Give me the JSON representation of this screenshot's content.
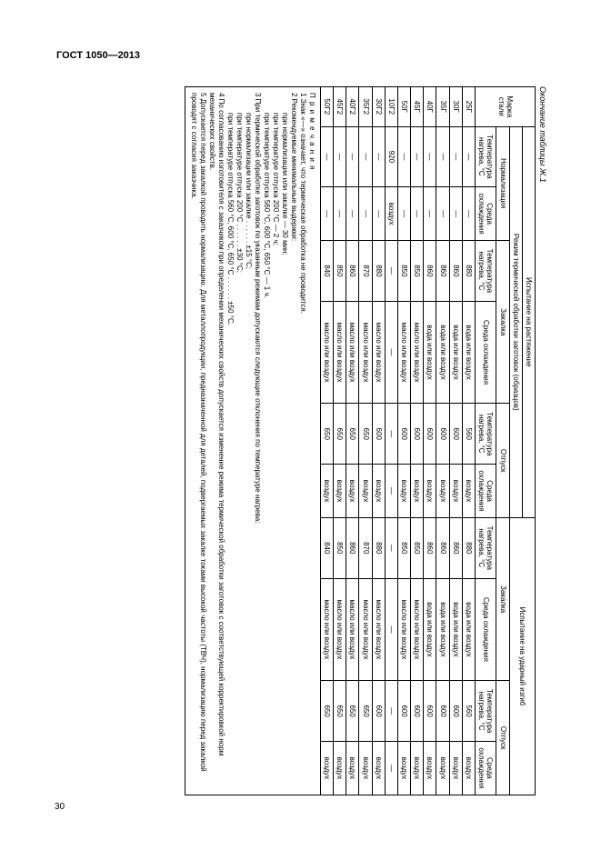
{
  "page_number": "30",
  "doc_title": "ГОСТ 1050—2013",
  "table_caption": "Окончание таблицы Ж.1",
  "headers": {
    "mark": "Марка\nстали",
    "top_tension": "Испытание на растяжение",
    "top_mode": "Режим термической обработки заготовок (образцов)",
    "top_impact": "Испытание на ударный изгиб",
    "norm": "Нормализация",
    "zak": "Закалка",
    "otp": "Отпуск",
    "tnag": "Температура\nнагрева, °С",
    "envcool": "Среда\nохлаждения",
    "envcool_wide": "Среда охлаждения"
  },
  "rows": [
    {
      "m": "25Г",
      "n1": "—",
      "n2": "—",
      "zt": "880",
      "ze": "вода или воздух",
      "ot": "560",
      "oe": "воздух",
      "it": "880",
      "ie": "вода или воздух",
      "jt": "560",
      "je": "воздух"
    },
    {
      "m": "30Г",
      "n1": "—",
      "n2": "—",
      "zt": "860",
      "ze": "вода или воздух",
      "ot": "600",
      "oe": "воздух",
      "it": "860",
      "ie": "вода или воздух",
      "jt": "600",
      "je": "воздух"
    },
    {
      "m": "35Г",
      "n1": "—",
      "n2": "—",
      "zt": "860",
      "ze": "вода или воздух",
      "ot": "600",
      "oe": "воздух",
      "it": "860",
      "ie": "вода или воздух",
      "jt": "600",
      "je": "воздух"
    },
    {
      "m": "40Г",
      "n1": "—",
      "n2": "—",
      "zt": "860",
      "ze": "вода или воздух",
      "ot": "600",
      "oe": "воздух",
      "it": "860",
      "ie": "вода или воздух",
      "jt": "600",
      "je": "воздух"
    },
    {
      "m": "45Г",
      "n1": "—",
      "n2": "—",
      "zt": "850",
      "ze": "масло или воздух",
      "ot": "600",
      "oe": "воздух",
      "it": "850",
      "ie": "масло или воздух",
      "jt": "600",
      "je": "воздух"
    },
    {
      "m": "50Г",
      "n1": "—",
      "n2": "—",
      "zt": "850",
      "ze": "масло или воздух",
      "ot": "600",
      "oe": "воздух",
      "it": "850",
      "ie": "масло или воздух",
      "jt": "600",
      "je": "воздух"
    },
    {
      "m": "10Г2",
      "n1": "920",
      "n2": "воздух",
      "zt": "—",
      "ze": "—",
      "ot": "—",
      "oe": "—",
      "it": "—",
      "ie": "—",
      "jt": "—",
      "je": "—"
    },
    {
      "m": "30Г2",
      "n1": "—",
      "n2": "—",
      "zt": "880",
      "ze": "масло или воздух",
      "ot": "600",
      "oe": "воздух",
      "it": "880",
      "ie": "масло или воздух",
      "jt": "600",
      "je": "воздух"
    },
    {
      "m": "35Г2",
      "n1": "—",
      "n2": "—",
      "zt": "870",
      "ze": "масло или воздух",
      "ot": "650",
      "oe": "воздух",
      "it": "870",
      "ie": "масло или воздух",
      "jt": "650",
      "je": "воздух"
    },
    {
      "m": "40Г2",
      "n1": "—",
      "n2": "—",
      "zt": "860",
      "ze": "масло или воздух",
      "ot": "650",
      "oe": "воздух",
      "it": "860",
      "ie": "масло или воздух",
      "jt": "650",
      "je": "воздух"
    },
    {
      "m": "45Г2",
      "n1": "—",
      "n2": "—",
      "zt": "850",
      "ze": "масло или воздух",
      "ot": "650",
      "oe": "воздух",
      "it": "850",
      "ie": "масло или воздух",
      "jt": "650",
      "je": "воздух"
    },
    {
      "m": "50Г2",
      "n1": "—",
      "n2": "—",
      "zt": "840",
      "ze": "масло или воздух",
      "ot": "650",
      "oe": "воздух",
      "it": "840",
      "ie": "масло или воздух",
      "jt": "650",
      "je": "воздух"
    }
  ],
  "notes": {
    "head": "П р и м е ч а н и я",
    "n1": "1  Знак «—» означает, что термическая обработка не проводится.",
    "n2": "2  Рекомендуемые минимальные выдержки:",
    "n2a": "при нормализации или закалке — 30 мин;",
    "n2b": "при температуре отпуска 200 °С — 2 ч;",
    "n2c": "при температуре отпуска 560 °С, 600 °С, 650 °С — 1 ч.",
    "n3": "3  При термической обработке заготовок по указанным режимам допускаются следующие отклонения по температуре нагрева:",
    "n3a": "при нормализации или закалке  . . . . . .  ±15 °С;",
    "n3b": "при температуре отпуска 200 °С  . . . . . . ±30 °С;",
    "n3c": "при температуре отпуска 560 °С, 600 °С, 650 °С  . . . . . . ±50 °С.",
    "n4": "4  По согласованию изготовителя с заказчиком при определении механических свойств допускается изменение режима термической обработки заготовок с соответствующей корректировкой норм механических свойств.",
    "n5": "5  Допускается перед закалкой проводить нормализацию. Для металлопродукции, предназначенной для деталей, подвергаемых закалке токами высокой частоты (ТВЧ), нормализацию перед закалкой проводят с согласия заказчика."
  }
}
